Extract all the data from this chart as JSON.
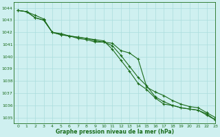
{
  "title": "Graphe pression niveau de la mer (hPa)",
  "bg_color": "#cff0f0",
  "grid_color": "#aadddd",
  "line_color": "#1a6b1a",
  "xlim": [
    -0.5,
    23
  ],
  "ylim": [
    1034.5,
    1044.5
  ],
  "yticks": [
    1035,
    1036,
    1037,
    1038,
    1039,
    1040,
    1041,
    1042,
    1043,
    1044
  ],
  "xticks": [
    0,
    1,
    2,
    3,
    4,
    5,
    6,
    7,
    8,
    9,
    10,
    11,
    12,
    13,
    14,
    15,
    16,
    17,
    18,
    19,
    20,
    21,
    22,
    23
  ],
  "series": [
    [
      1043.8,
      1043.7,
      1043.4,
      1043.1,
      1042.0,
      1041.9,
      1041.7,
      1041.5,
      1041.4,
      1041.2,
      1041.2,
      1041.1,
      1040.5,
      1040.3,
      1039.8,
      1037.5,
      1037.1,
      1036.8,
      1036.4,
      1036.1,
      1035.9,
      1035.8,
      1035.4,
      1035.0
    ],
    [
      1043.8,
      1043.7,
      1043.2,
      1043.0,
      1042.0,
      1041.8,
      1041.7,
      1041.6,
      1041.5,
      1041.4,
      1041.3,
      1040.6,
      1039.7,
      1038.8,
      1037.8,
      1037.3,
      1036.6,
      1036.1,
      1036.0,
      1035.8,
      1035.7,
      1035.6,
      1035.3,
      1034.8
    ],
    [
      1043.8,
      1043.7,
      1043.2,
      1043.0,
      1042.0,
      1041.8,
      1041.7,
      1041.6,
      1041.5,
      1041.3,
      1041.2,
      1040.9,
      1040.1,
      1039.2,
      1038.3,
      1037.6,
      1036.7,
      1036.3,
      1036.0,
      1035.8,
      1035.7,
      1035.6,
      1035.2,
      1034.8
    ]
  ]
}
